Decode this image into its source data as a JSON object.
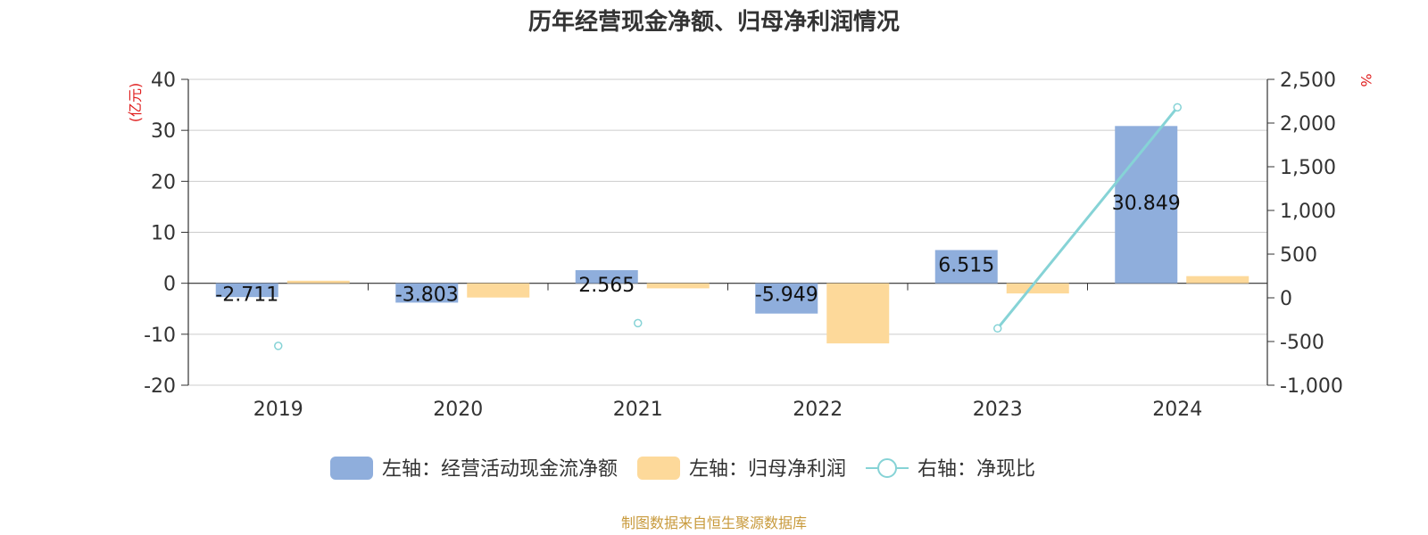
{
  "chart_data": {
    "type": "bar",
    "title": "历年经营现金净额、归母净利润情况",
    "categories": [
      "2019",
      "2020",
      "2021",
      "2022",
      "2023",
      "2024"
    ],
    "left_axis": {
      "unit": "(亿元)",
      "ylim": [
        -20,
        40
      ],
      "ticks": [
        "40",
        "30",
        "20",
        "10",
        "0",
        "-10",
        "-20"
      ]
    },
    "right_axis": {
      "unit": "%",
      "ylim": [
        -1000,
        2500
      ],
      "ticks": [
        "2,500",
        "2,000",
        "1,500",
        "1,000",
        "500",
        "0",
        "-500",
        "-1,000"
      ]
    },
    "series": [
      {
        "name": "左轴：经营活动现金流净额",
        "type": "bar",
        "axis": "left",
        "color": "#8faedc",
        "values": [
          -2.711,
          -3.803,
          2.565,
          -5.949,
          6.515,
          30.849
        ],
        "labels": [
          "-2.711",
          "-3.803",
          "2.565",
          "-5.949",
          "6.515",
          "30.849"
        ]
      },
      {
        "name": "左轴：归母净利润",
        "type": "bar",
        "axis": "left",
        "color": "#fdd99a",
        "values": [
          0.5,
          -2.8,
          -1.0,
          -11.8,
          -2.0,
          1.4
        ]
      },
      {
        "name": "右轴：净现比",
        "type": "line",
        "axis": "right",
        "color": "#86d3d6",
        "values": [
          -550,
          null,
          -290,
          null,
          -350,
          2180
        ]
      }
    ],
    "grid": true,
    "legend_position": "bottom"
  },
  "source": "制图数据来自恒生聚源数据库"
}
